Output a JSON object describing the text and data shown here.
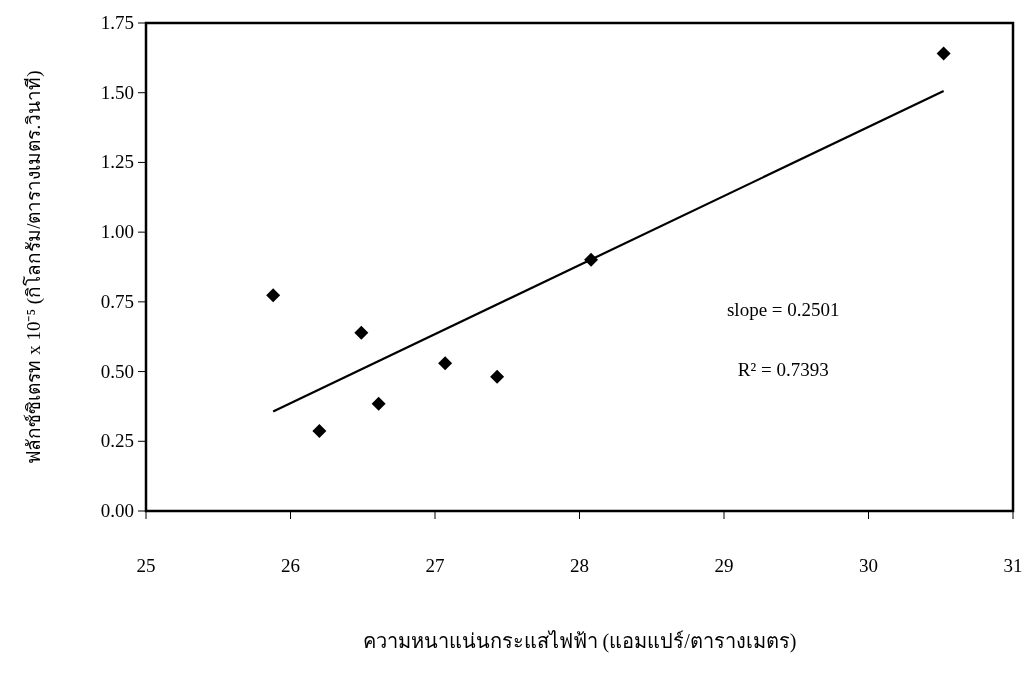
{
  "chart_data": {
    "type": "scatter",
    "xlabel": "ความหนาแน่นกระแสไฟฟ้า (แอมแปร์/ตารางเมตร)",
    "ylabel": "ฟลักซ์ซิเตรท x 10⁻⁵  (กิโลกรัม/ตารางเมตร.วินาที)",
    "xlim": [
      25,
      31
    ],
    "xticks": [
      25,
      26,
      27,
      28,
      29,
      30,
      31
    ],
    "ylim": [
      0,
      1.75
    ],
    "yticks": [
      {
        "value": 0,
        "label": "0.00"
      },
      {
        "value": 0.25,
        "label": "0.25"
      },
      {
        "value": 0.5,
        "label": "0.50"
      },
      {
        "value": 0.75,
        "label": "0.75"
      },
      {
        "value": 1,
        "label": "1.00"
      },
      {
        "value": 1.25,
        "label": "1.25"
      },
      {
        "value": 1.5,
        "label": "1.50"
      },
      {
        "value": 1.75,
        "label": "1.75"
      }
    ],
    "annotations": [
      "slope = 0.2501",
      "R² = 0.7393"
    ],
    "series": [
      {
        "type": "scatter",
        "color": "#000000",
        "marker": "diamond",
        "x": [
          25.88,
          26.2,
          26.49,
          26.61,
          27.07,
          27.43,
          28.08,
          30.52
        ],
        "values": [
          0.774,
          0.287,
          0.639,
          0.385,
          0.53,
          0.481,
          0.901,
          1.641
        ]
      },
      {
        "type": "line",
        "color": "#000000",
        "marker": "none",
        "line_style": "solid",
        "x": [
          25.88,
          30.52
        ],
        "values": [
          0.357,
          1.506
        ]
      }
    ]
  }
}
